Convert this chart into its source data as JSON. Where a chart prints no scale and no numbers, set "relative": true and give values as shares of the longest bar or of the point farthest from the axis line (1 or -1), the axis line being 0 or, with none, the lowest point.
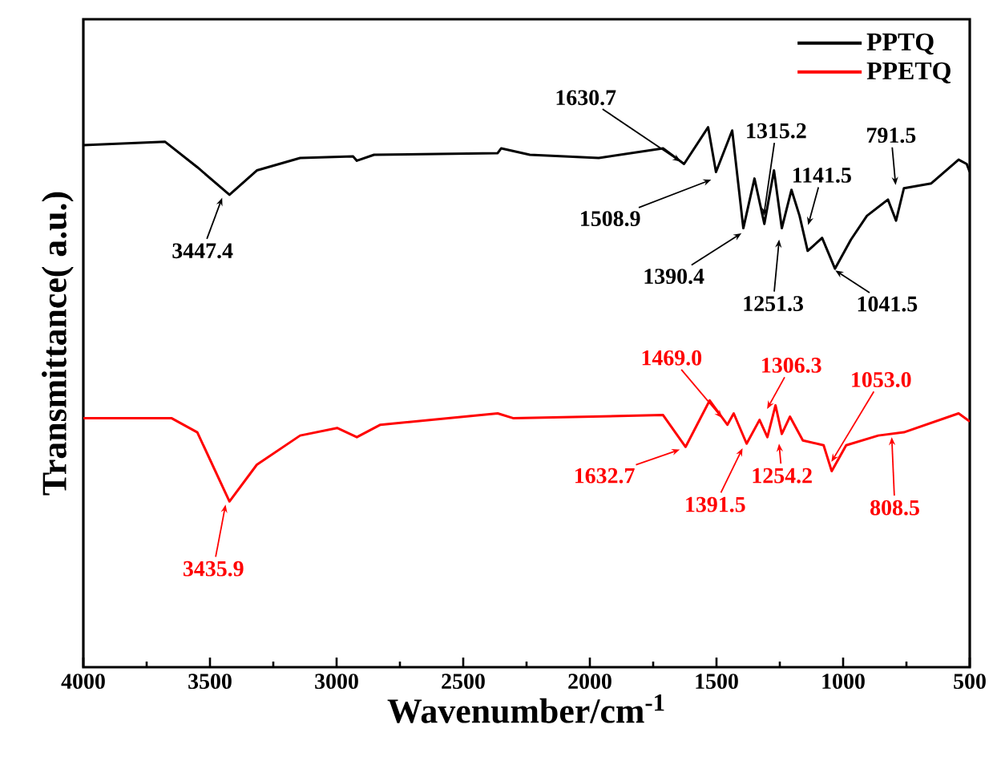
{
  "chart_data": {
    "type": "line",
    "relative": true,
    "xlabel": "Wavenumber/cm$^{-1}$",
    "ylabel": "Transmittance( a.u.)",
    "xlim": [
      4000,
      500
    ],
    "xticks": [
      4000,
      3500,
      3000,
      2500,
      2000,
      1500,
      1000,
      500
    ],
    "legend": "top right",
    "series": [
      {
        "name": "PPTQ",
        "color": "#000000",
        "x": [
          4000,
          3677,
          3550,
          3423,
          3315,
          3144,
          2935,
          2920,
          2852,
          2364,
          2350,
          2237,
          1965,
          1711,
          1628,
          1533,
          1502,
          1438,
          1394,
          1350,
          1311,
          1273,
          1242,
          1204,
          1172,
          1140,
          1083,
          1032,
          969,
          906,
          823,
          791,
          760,
          652,
          544,
          512,
          500
        ],
        "values": [
          0.967,
          0.973,
          0.926,
          0.875,
          0.92,
          0.943,
          0.946,
          0.938,
          0.949,
          0.952,
          0.961,
          0.949,
          0.943,
          0.961,
          0.932,
          1.0,
          0.917,
          0.994,
          0.813,
          0.905,
          0.821,
          0.92,
          0.813,
          0.884,
          0.836,
          0.771,
          0.795,
          0.738,
          0.792,
          0.836,
          0.866,
          0.827,
          0.887,
          0.896,
          0.94,
          0.932,
          0.917
        ]
      },
      {
        "name": "PPETQ",
        "color": "#ff0000",
        "x": [
          4000,
          3651,
          3550,
          3423,
          3315,
          3144,
          2998,
          2920,
          2827,
          2364,
          2301,
          1711,
          1622,
          1527,
          1457,
          1432,
          1381,
          1330,
          1299,
          1267,
          1242,
          1210,
          1159,
          1077,
          1045,
          988,
          861,
          760,
          544,
          500
        ],
        "values": [
          0.461,
          0.461,
          0.435,
          0.307,
          0.375,
          0.429,
          0.443,
          0.426,
          0.449,
          0.47,
          0.461,
          0.467,
          0.408,
          0.494,
          0.449,
          0.47,
          0.414,
          0.458,
          0.426,
          0.485,
          0.432,
          0.464,
          0.42,
          0.411,
          0.363,
          0.411,
          0.429,
          0.435,
          0.47,
          0.455
        ]
      }
    ],
    "annotations": [
      {
        "text": "3447.4",
        "x": 3447.4,
        "y": 0.875
      },
      {
        "text": "1630.7",
        "x": 1630.7,
        "y": 0.933
      },
      {
        "text": "1508.9",
        "x": 1508.9,
        "y": 0.905
      },
      {
        "text": "1315.2",
        "x": 1315.2,
        "y": 0.83
      },
      {
        "text": "1390.4",
        "x": 1390.4,
        "y": 0.807
      },
      {
        "text": "1251.3",
        "x": 1251.3,
        "y": 0.798
      },
      {
        "text": "1141.5",
        "x": 1141.5,
        "y": 0.813
      },
      {
        "text": "1041.5",
        "x": 1041.5,
        "y": 0.738
      },
      {
        "text": "791.5",
        "x": 791.5,
        "y": 0.887
      },
      {
        "text": "3435.9",
        "x": 3435.9,
        "y": 0.307
      },
      {
        "text": "1469.0",
        "x": 1469.0,
        "y": 0.457
      },
      {
        "text": "1306.3",
        "x": 1306.3,
        "y": 0.473
      },
      {
        "text": "1053.0",
        "x": 1053.0,
        "y": 0.375
      },
      {
        "text": "1632.7",
        "x": 1632.7,
        "y": 0.405
      },
      {
        "text": "1391.5",
        "x": 1391.5,
        "y": 0.411
      },
      {
        "text": "1254.2",
        "x": 1254.2,
        "y": 0.42
      },
      {
        "text": "808.5",
        "x": 808.5,
        "y": 0.432
      }
    ]
  }
}
